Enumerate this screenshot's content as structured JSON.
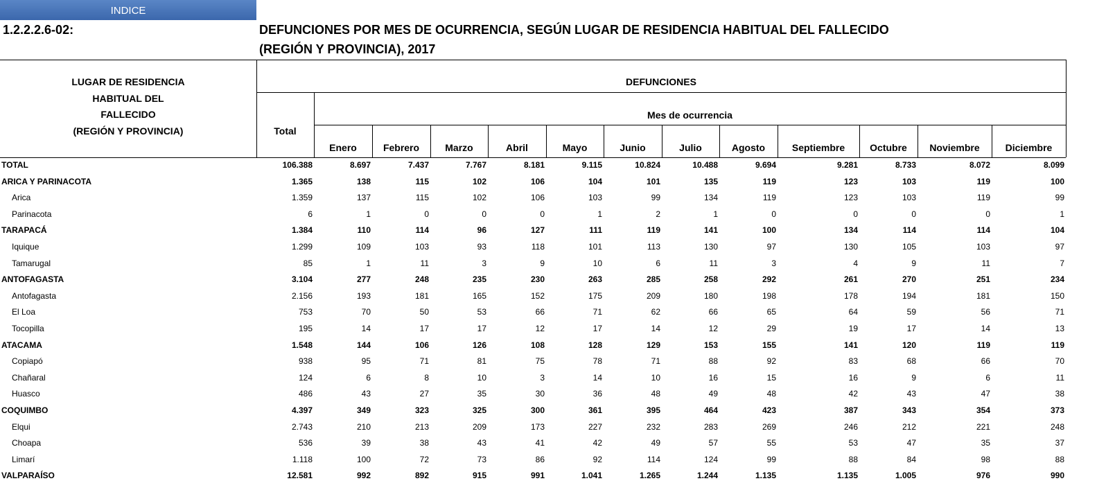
{
  "indice": "INDICE",
  "code": "1.2.2.2.6-02:",
  "title_lines": [
    "DEFUNCIONES POR MES DE OCURRENCIA, SEGÚN LUGAR DE RESIDENCIA HABITUAL DEL FALLECIDO",
    "(REGIÓN Y PROVINCIA),  2017"
  ],
  "table": {
    "row_header_lines": [
      "LUGAR DE RESIDENCIA",
      "HABITUAL DEL",
      "FALLECIDO",
      "(REGIÓN Y PROVINCIA)"
    ],
    "group_header": "DEFUNCIONES",
    "total_header": "Total",
    "month_group_header": "Mes de ocurrencia",
    "months": [
      "Enero",
      "Febrero",
      "Marzo",
      "Abril",
      "Mayo",
      "Junio",
      "Julio",
      "Agosto",
      "Septiembre",
      "Octubre",
      "Noviembre",
      "Diciembre"
    ],
    "total_row": {
      "name": "TOTAL",
      "values": [
        "106.388",
        "8.697",
        "7.437",
        "7.767",
        "8.181",
        "9.115",
        "10.824",
        "10.488",
        "9.694",
        "9.281",
        "8.733",
        "8.072",
        "8.099"
      ]
    },
    "regions": [
      {
        "name": "ARICA Y PARINACOTA",
        "values": [
          "1.365",
          "138",
          "115",
          "102",
          "106",
          "104",
          "101",
          "135",
          "119",
          "123",
          "103",
          "119",
          "100"
        ],
        "provinces": [
          {
            "name": "Arica",
            "values": [
              "1.359",
              "137",
              "115",
              "102",
              "106",
              "103",
              "99",
              "134",
              "119",
              "123",
              "103",
              "119",
              "99"
            ]
          },
          {
            "name": "Parinacota",
            "values": [
              "6",
              "1",
              "0",
              "0",
              "0",
              "1",
              "2",
              "1",
              "0",
              "0",
              "0",
              "0",
              "1"
            ]
          }
        ]
      },
      {
        "name": "TARAPACÁ",
        "values": [
          "1.384",
          "110",
          "114",
          "96",
          "127",
          "111",
          "119",
          "141",
          "100",
          "134",
          "114",
          "114",
          "104"
        ],
        "provinces": [
          {
            "name": "Iquique",
            "values": [
              "1.299",
              "109",
              "103",
              "93",
              "118",
              "101",
              "113",
              "130",
              "97",
              "130",
              "105",
              "103",
              "97"
            ]
          },
          {
            "name": "Tamarugal",
            "values": [
              "85",
              "1",
              "11",
              "3",
              "9",
              "10",
              "6",
              "11",
              "3",
              "4",
              "9",
              "11",
              "7"
            ]
          }
        ]
      },
      {
        "name": "ANTOFAGASTA",
        "values": [
          "3.104",
          "277",
          "248",
          "235",
          "230",
          "263",
          "285",
          "258",
          "292",
          "261",
          "270",
          "251",
          "234"
        ],
        "provinces": [
          {
            "name": "Antofagasta",
            "values": [
              "2.156",
              "193",
              "181",
              "165",
              "152",
              "175",
              "209",
              "180",
              "198",
              "178",
              "194",
              "181",
              "150"
            ]
          },
          {
            "name": "El Loa",
            "values": [
              "753",
              "70",
              "50",
              "53",
              "66",
              "71",
              "62",
              "66",
              "65",
              "64",
              "59",
              "56",
              "71"
            ]
          },
          {
            "name": "Tocopilla",
            "values": [
              "195",
              "14",
              "17",
              "17",
              "12",
              "17",
              "14",
              "12",
              "29",
              "19",
              "17",
              "14",
              "13"
            ]
          }
        ]
      },
      {
        "name": "ATACAMA",
        "values": [
          "1.548",
          "144",
          "106",
          "126",
          "108",
          "128",
          "129",
          "153",
          "155",
          "141",
          "120",
          "119",
          "119"
        ],
        "provinces": [
          {
            "name": "Copiapó",
            "values": [
              "938",
              "95",
              "71",
              "81",
              "75",
              "78",
              "71",
              "88",
              "92",
              "83",
              "68",
              "66",
              "70"
            ]
          },
          {
            "name": "Chañaral",
            "values": [
              "124",
              "6",
              "8",
              "10",
              "3",
              "14",
              "10",
              "16",
              "15",
              "16",
              "9",
              "6",
              "11"
            ]
          },
          {
            "name": "Huasco",
            "values": [
              "486",
              "43",
              "27",
              "35",
              "30",
              "36",
              "48",
              "49",
              "48",
              "42",
              "43",
              "47",
              "38"
            ]
          }
        ]
      },
      {
        "name": "COQUIMBO",
        "values": [
          "4.397",
          "349",
          "323",
          "325",
          "300",
          "361",
          "395",
          "464",
          "423",
          "387",
          "343",
          "354",
          "373"
        ],
        "provinces": [
          {
            "name": "Elqui",
            "values": [
              "2.743",
              "210",
              "213",
              "209",
              "173",
              "227",
              "232",
              "283",
              "269",
              "246",
              "212",
              "221",
              "248"
            ]
          },
          {
            "name": "Choapa",
            "values": [
              "536",
              "39",
              "38",
              "43",
              "41",
              "42",
              "49",
              "57",
              "55",
              "53",
              "47",
              "35",
              "37"
            ]
          },
          {
            "name": "Limarí",
            "values": [
              "1.118",
              "100",
              "72",
              "73",
              "86",
              "92",
              "114",
              "124",
              "99",
              "88",
              "84",
              "98",
              "88"
            ]
          }
        ]
      },
      {
        "name": "VALPARAÍSO",
        "values": [
          "12.581",
          "992",
          "892",
          "915",
          "991",
          "1.041",
          "1.265",
          "1.244",
          "1.135",
          "1.135",
          "1.005",
          "976",
          "990"
        ],
        "provinces": []
      }
    ]
  }
}
